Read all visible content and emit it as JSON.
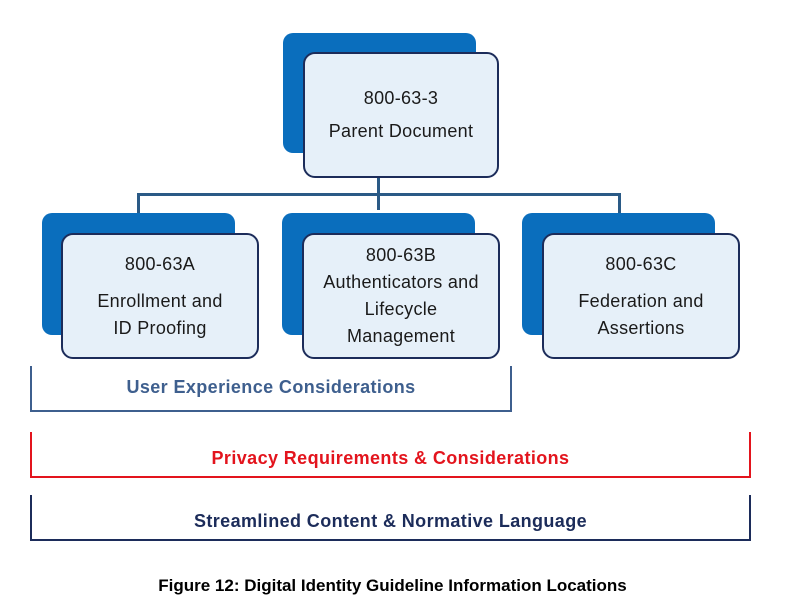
{
  "parent": {
    "code": "800-63-3",
    "title": "Parent Document"
  },
  "children": [
    {
      "code": "800-63A",
      "lines": [
        "Enrollment and",
        "ID Proofing"
      ]
    },
    {
      "code": "800-63B",
      "lines": [
        "Authenticators and",
        "Lifecycle",
        "Management"
      ]
    },
    {
      "code": "800-63C",
      "lines": [
        "Federation and",
        "Assertions"
      ]
    }
  ],
  "brackets": {
    "ux": {
      "label": "User Experience Considerations",
      "color": "#3e5f8e"
    },
    "privacy": {
      "label": "Privacy Requirements & Considerations",
      "color": "#e3141d"
    },
    "content": {
      "label": "Streamlined Content & Normative Language",
      "color": "#1c2c5a"
    }
  },
  "caption": "Figure 12: Digital Identity Guideline Information Locations",
  "colors": {
    "shadow": "#0a6ebd",
    "card_fill": "#e6f0f9",
    "card_border": "#1c2c5a",
    "connector": "#2a5a86"
  }
}
